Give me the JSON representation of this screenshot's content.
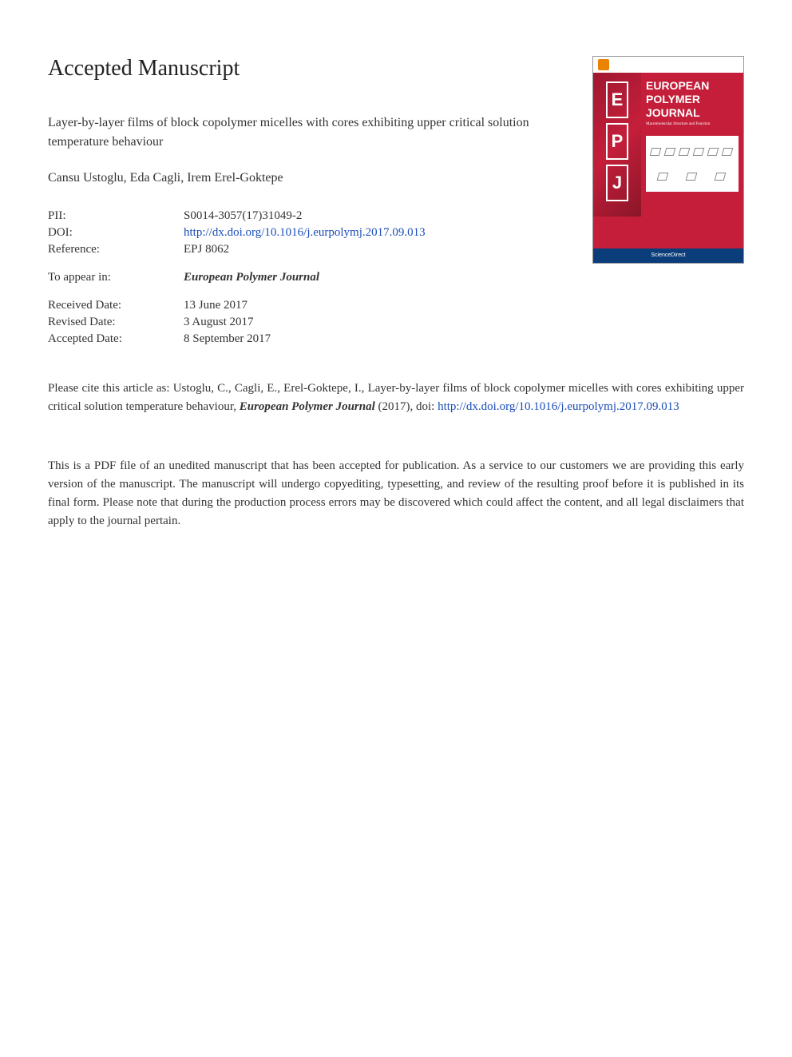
{
  "page": {
    "heading": "Accepted Manuscript",
    "background_color": "#ffffff",
    "text_color": "#333333",
    "link_color": "#1a4db8"
  },
  "article": {
    "title": "Layer-by-layer films of block copolymer micelles with cores exhibiting upper critical solution temperature behaviour",
    "authors": "Cansu Ustoglu, Eda Cagli, Irem Erel-Goktepe"
  },
  "meta": {
    "pii_label": "PII:",
    "pii_value": "S0014-3057(17)31049-2",
    "doi_label": "DOI:",
    "doi_url": "http://dx.doi.org/10.1016/j.eurpolymj.2017.09.013",
    "reference_label": "Reference:",
    "reference_value": "EPJ 8062",
    "appear_label": "To appear in:",
    "appear_value": "European Polymer Journal",
    "received_label": "Received Date:",
    "received_value": "13 June 2017",
    "revised_label": "Revised Date:",
    "revised_value": "3 August 2017",
    "accepted_label": "Accepted Date:",
    "accepted_value": "8 September 2017"
  },
  "citation": {
    "prefix": "Please cite this article as: Ustoglu, C., Cagli, E., Erel-Goktepe, I., Layer-by-layer films of block copolymer micelles with cores exhibiting upper critical solution temperature behaviour, ",
    "journal": "European Polymer Journal",
    "year": " (2017), doi: ",
    "doi_url": "http://dx.doi.org/10.1016/j.eurpolymj.2017.09.013"
  },
  "disclaimer": "This is a PDF file of an unedited manuscript that has been accepted for publication. As a service to our customers we are providing this early version of the manuscript. The manuscript will undergo copyediting, typesetting, and review of the resulting proof before it is published in its final form. Please note that during the production process errors may be discovered which could affect the content, and all legal disclaimers that apply to the journal pertain.",
  "cover": {
    "journal_title_line1": "EUROPEAN",
    "journal_title_line2": "POLYMER",
    "journal_title_line3": "JOURNAL",
    "letter_e": "E",
    "letter_p": "P",
    "letter_j": "J",
    "bg_color": "#c41e3a",
    "banner_color": "#0a3d7a",
    "banner_text": "ScienceDirect",
    "sub_text": "Macromolecular Structure and Function"
  }
}
